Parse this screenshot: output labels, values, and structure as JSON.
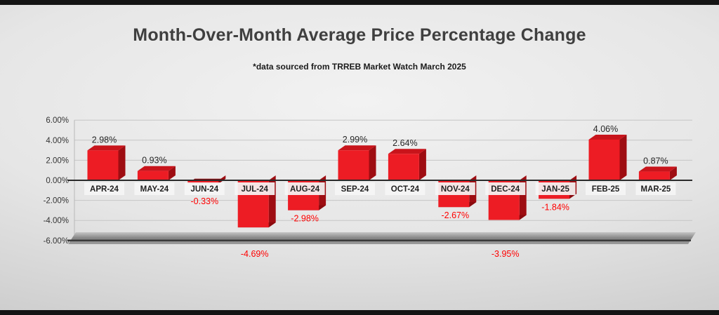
{
  "header": {
    "title": "Month-Over-Month Average Price Percentage Change",
    "subtitle": "*data sourced from TRREB Market Watch March 2025"
  },
  "chart_data": {
    "type": "bar",
    "variant": "3d-column",
    "title": "Month-Over-Month Average Price Percentage Change",
    "subtitle": "*data sourced from TRREB Market Watch March 2025",
    "categories": [
      "APR-24",
      "MAY-24",
      "JUN-24",
      "JUL-24",
      "AUG-24",
      "SEP-24",
      "OCT-24",
      "NOV-24",
      "DEC-24",
      "JAN-25",
      "FEB-25",
      "MAR-25"
    ],
    "values": [
      2.98,
      0.93,
      -0.33,
      -4.69,
      -2.98,
      2.99,
      2.64,
      -2.67,
      -3.95,
      -1.84,
      4.06,
      0.87
    ],
    "value_labels": [
      "2.98%",
      "0.93%",
      "-0.33%",
      "-4.69%",
      "-2.98%",
      "2.99%",
      "2.64%",
      "-2.67%",
      "-3.95%",
      "-1.84%",
      "4.06%",
      "0.87%"
    ],
    "y_ticks": {
      "values": [
        6,
        4,
        2,
        0,
        -2,
        -4,
        -6
      ],
      "labels": [
        "6.00%",
        "4.00%",
        "2.00%",
        "0.00%",
        "-2.00%",
        "-4.00%",
        "-6.00%"
      ]
    },
    "ylim": [
      -6,
      6
    ],
    "grid": true,
    "legend": "none",
    "colors": {
      "bar_front": "#ed1c24",
      "bar_side": "#9e0d12",
      "bar_top": "#c8141b",
      "bar_bottom": "#8a0a0e",
      "gridline": "#c6c6c6",
      "axis": "#2b2b2b",
      "base_line": "#3a3a3a",
      "tick_text": "#333333",
      "category_text": "#1f1f1f",
      "category_box": "#f5f5f5",
      "positive_label": "#262626",
      "negative_label": "#ff0000",
      "floor_top": "#c6c6c6",
      "floor_mid": "#848484",
      "floor_bottom": "#9b9b9b"
    }
  }
}
